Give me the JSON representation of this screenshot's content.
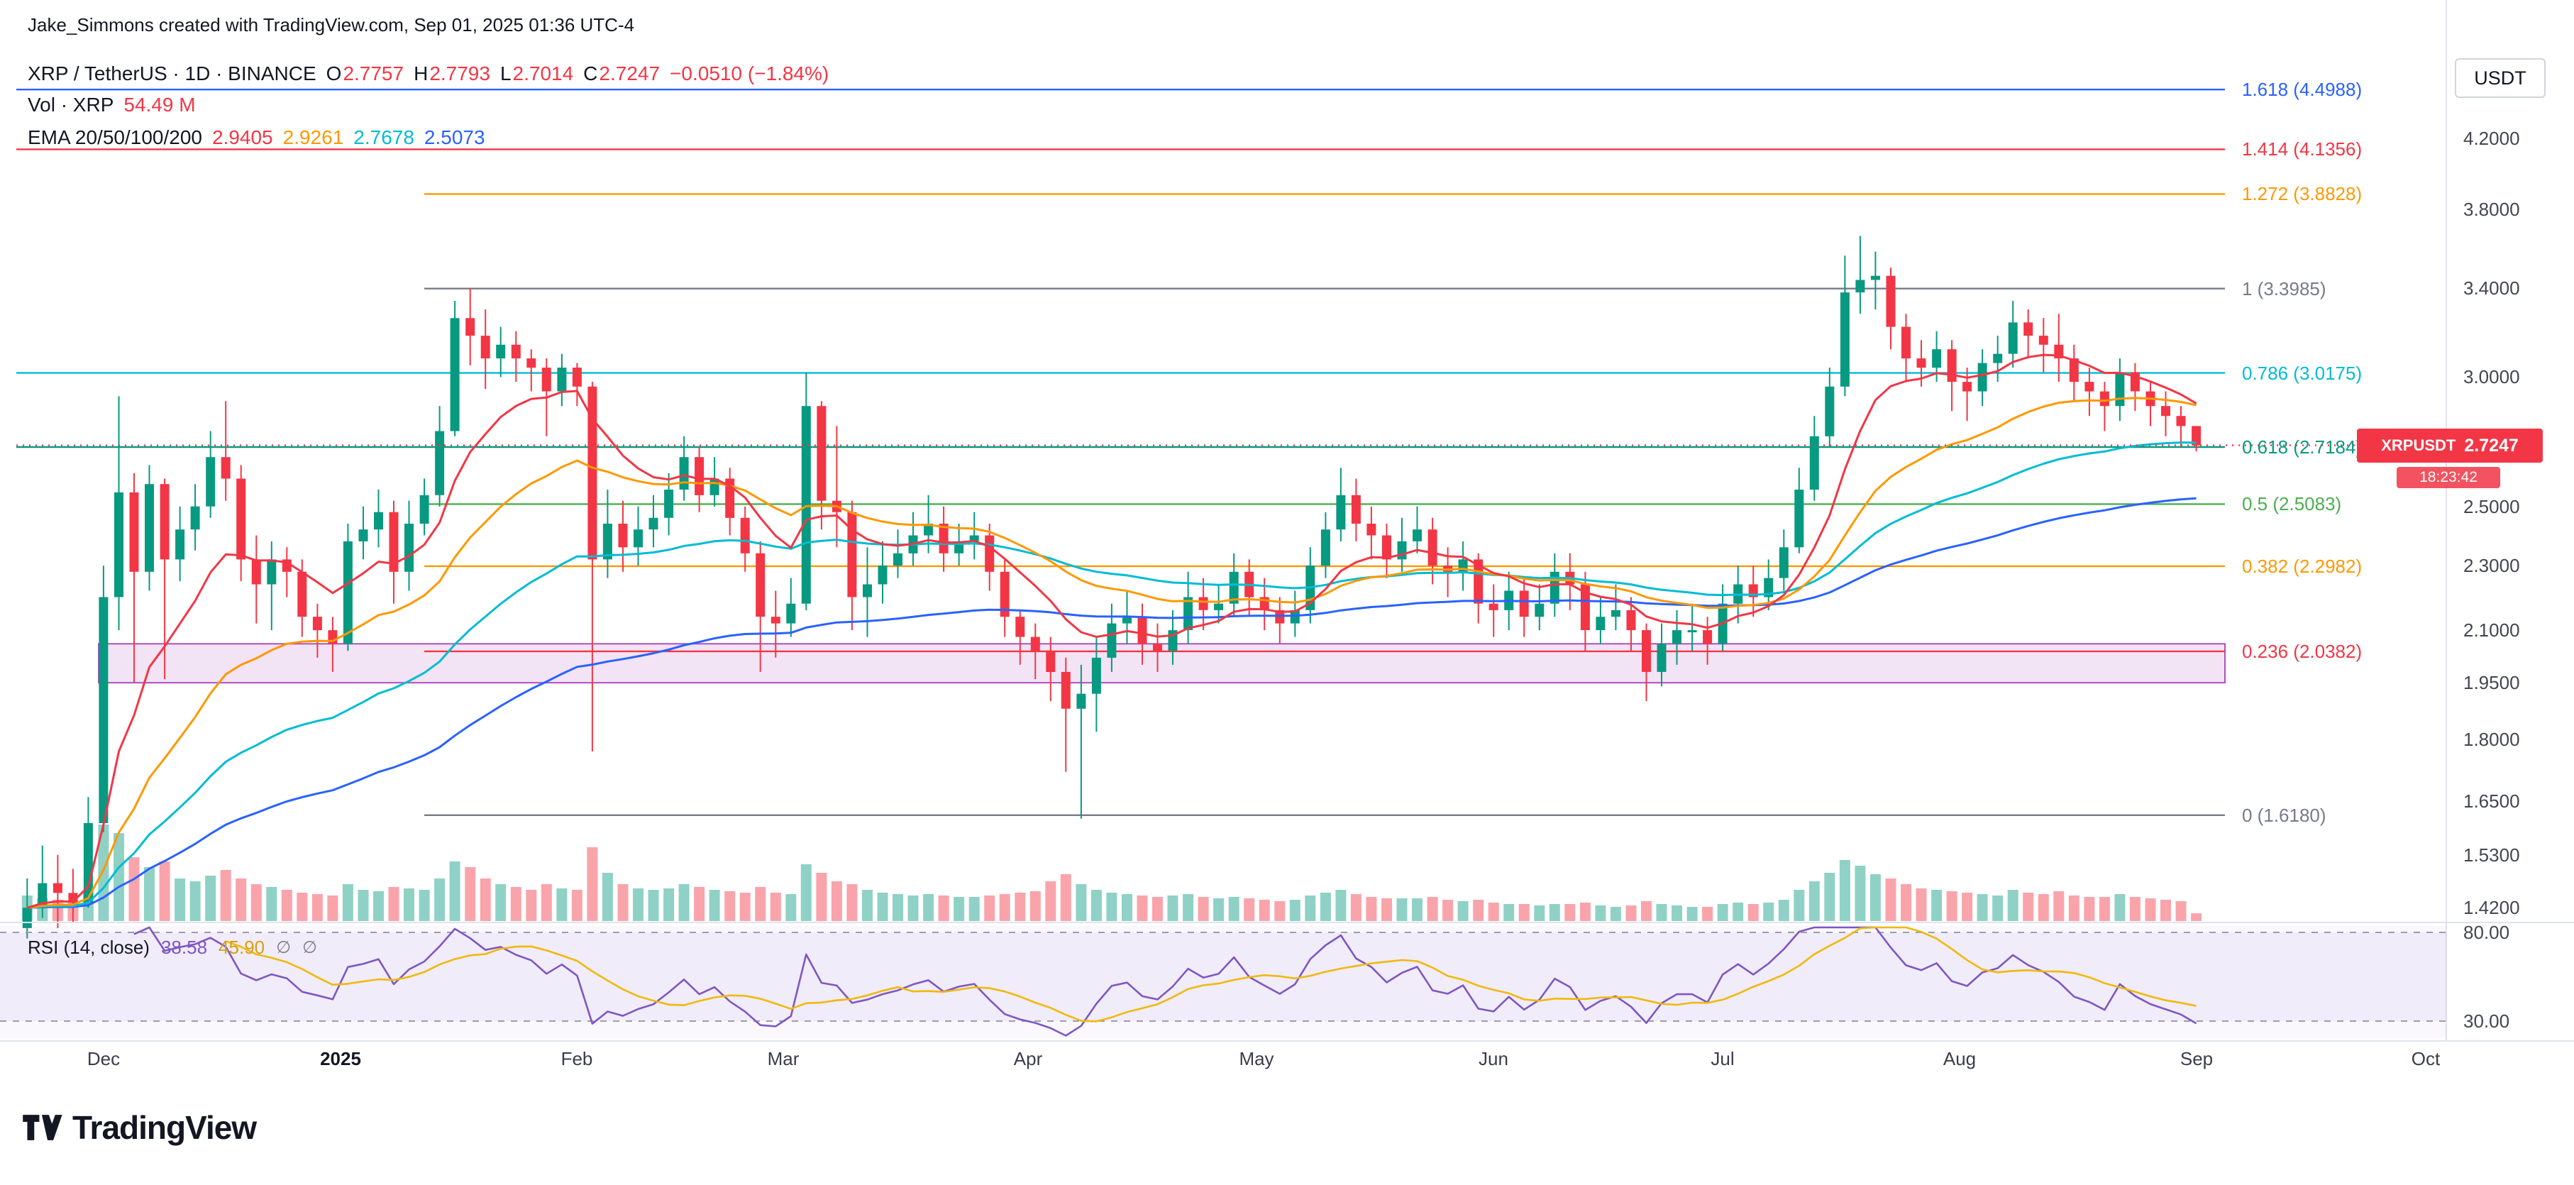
{
  "attribution": "Jake_Simmons created with TradingView.com, Sep 01, 2025 01:36 UTC-4",
  "legend": {
    "symbol": "XRP / TetherUS · 1D · BINANCE",
    "ohlc": {
      "o_label": "O",
      "o": "2.7757",
      "h_label": "H",
      "h": "2.7793",
      "l_label": "L",
      "l": "2.7014",
      "c_label": "C",
      "c": "2.7247",
      "change": "−0.0510 (−1.84%)"
    },
    "vol_label": "Vol · XRP",
    "vol_value": "54.49 M",
    "ema_label": "EMA 20/50/100/200"
  },
  "rsi_legend": {
    "title": "RSI",
    "params": "(14, close)",
    "value": "38.58",
    "ma_value": "45.90",
    "empty_icon": "∅",
    "value_color": "#7e57c2",
    "ma_color": "#d4a017"
  },
  "price_tag": {
    "symbol": "XRPUSDT",
    "price": "2.7247",
    "countdown": "18:23:42",
    "color": "#f23645"
  },
  "price_axis": {
    "currency": "USDT",
    "ticks": [
      {
        "label": "4.2000",
        "price": 4.2
      },
      {
        "label": "3.8000",
        "price": 3.8
      },
      {
        "label": "3.4000",
        "price": 3.4
      },
      {
        "label": "3.0000",
        "price": 3.0
      },
      {
        "label": "2.5000",
        "price": 2.5
      },
      {
        "label": "2.3000",
        "price": 2.3
      },
      {
        "label": "2.1000",
        "price": 2.1
      },
      {
        "label": "1.9500",
        "price": 1.95
      },
      {
        "label": "1.8000",
        "price": 1.8
      },
      {
        "label": "1.6500",
        "price": 1.65
      },
      {
        "label": "1.5300",
        "price": 1.53
      },
      {
        "label": "1.4200",
        "price": 1.42
      }
    ],
    "rsi_ticks": [
      {
        "label": "80.00",
        "value": 80
      },
      {
        "label": "30.00",
        "value": 30
      }
    ]
  },
  "time_axis": [
    {
      "label": "Dec",
      "bar": 5,
      "bold": false
    },
    {
      "label": "2025",
      "bar": 20.5,
      "bold": true
    },
    {
      "label": "Feb",
      "bar": 36,
      "bold": false
    },
    {
      "label": "Mar",
      "bar": 49.5,
      "bold": false
    },
    {
      "label": "Apr",
      "bar": 65.5,
      "bold": false
    },
    {
      "label": "May",
      "bar": 80.5,
      "bold": false
    },
    {
      "label": "Jun",
      "bar": 96,
      "bold": false
    },
    {
      "label": "Jul",
      "bar": 111,
      "bold": false
    },
    {
      "label": "Aug",
      "bar": 126.5,
      "bold": false
    },
    {
      "label": "Sep",
      "bar": 142,
      "bold": false
    },
    {
      "label": "Oct",
      "bar": 157,
      "bold": false
    }
  ],
  "logo": {
    "text": "TradingView"
  },
  "chart_data": {
    "type": "candlestick",
    "symbol": "XRP/USDT",
    "exchange": "BINANCE",
    "timeframe": "1D",
    "scale": "log",
    "x_start_date": "2024-11-21",
    "bar_interval_days": 2,
    "first_open": 1.38,
    "last_bar": {
      "open": 2.7757,
      "high": 2.7793,
      "low": 2.7014,
      "close": 2.7247,
      "change": -0.051,
      "change_pct": -1.84
    },
    "colors": {
      "up": "#089981",
      "down": "#f23645",
      "vol_up": "#089981",
      "vol_down": "#f23645"
    },
    "candles": [
      [
        1.42,
        1.48,
        1.36
      ],
      [
        1.47,
        1.55,
        1.4
      ],
      [
        1.45,
        1.53,
        1.38
      ],
      [
        1.43,
        1.5,
        1.39
      ],
      [
        1.6,
        1.66,
        1.42
      ],
      [
        2.2,
        2.3,
        1.58
      ],
      [
        2.55,
        2.92,
        2.1
      ],
      [
        2.28,
        2.62,
        1.95
      ],
      [
        2.58,
        2.65,
        2.22
      ],
      [
        2.32,
        2.6,
        1.96
      ],
      [
        2.42,
        2.5,
        2.25
      ],
      [
        2.5,
        2.58,
        2.35
      ],
      [
        2.68,
        2.78,
        2.46
      ],
      [
        2.6,
        2.9,
        2.52
      ],
      [
        2.32,
        2.65,
        2.25
      ],
      [
        2.24,
        2.4,
        2.12
      ],
      [
        2.32,
        2.38,
        2.1
      ],
      [
        2.28,
        2.36,
        2.2
      ],
      [
        2.14,
        2.32,
        2.08
      ],
      [
        2.1,
        2.18,
        2.02
      ],
      [
        2.06,
        2.14,
        1.98
      ],
      [
        2.38,
        2.44,
        2.04
      ],
      [
        2.42,
        2.5,
        2.32
      ],
      [
        2.48,
        2.56,
        2.36
      ],
      [
        2.28,
        2.52,
        2.18
      ],
      [
        2.44,
        2.52,
        2.22
      ],
      [
        2.54,
        2.6,
        2.4
      ],
      [
        2.78,
        2.88,
        2.5
      ],
      [
        3.26,
        3.34,
        2.76
      ],
      [
        3.18,
        3.4,
        3.05
      ],
      [
        3.08,
        3.3,
        2.95
      ],
      [
        3.14,
        3.22,
        3.0
      ],
      [
        3.08,
        3.2,
        2.98
      ],
      [
        3.04,
        3.12,
        2.94
      ],
      [
        2.94,
        3.08,
        2.76
      ],
      [
        3.04,
        3.1,
        2.88
      ],
      [
        2.96,
        3.06,
        2.88
      ],
      [
        2.32,
        2.98,
        1.77
      ],
      [
        2.44,
        2.56,
        2.26
      ],
      [
        2.36,
        2.52,
        2.28
      ],
      [
        2.42,
        2.5,
        2.3
      ],
      [
        2.46,
        2.54,
        2.36
      ],
      [
        2.56,
        2.62,
        2.4
      ],
      [
        2.68,
        2.76,
        2.52
      ],
      [
        2.54,
        2.72,
        2.48
      ],
      [
        2.6,
        2.68,
        2.5
      ],
      [
        2.46,
        2.64,
        2.4
      ],
      [
        2.34,
        2.5,
        2.28
      ],
      [
        2.14,
        2.38,
        1.98
      ],
      [
        2.12,
        2.22,
        2.02
      ],
      [
        2.18,
        2.26,
        2.08
      ],
      [
        2.88,
        3.02,
        2.16
      ],
      [
        2.52,
        2.9,
        2.42
      ],
      [
        2.48,
        2.8,
        2.36
      ],
      [
        2.2,
        2.52,
        2.1
      ],
      [
        2.24,
        2.36,
        2.08
      ],
      [
        2.3,
        2.38,
        2.18
      ],
      [
        2.34,
        2.42,
        2.26
      ],
      [
        2.4,
        2.48,
        2.3
      ],
      [
        2.44,
        2.54,
        2.34
      ],
      [
        2.34,
        2.5,
        2.28
      ],
      [
        2.38,
        2.44,
        2.3
      ],
      [
        2.4,
        2.48,
        2.32
      ],
      [
        2.28,
        2.44,
        2.22
      ],
      [
        2.14,
        2.32,
        2.08
      ],
      [
        2.08,
        2.16,
        2.0
      ],
      [
        2.04,
        2.12,
        1.96
      ],
      [
        1.98,
        2.08,
        1.9
      ],
      [
        1.88,
        2.02,
        1.72
      ],
      [
        1.92,
        2.0,
        1.61
      ],
      [
        2.02,
        2.08,
        1.82
      ],
      [
        2.12,
        2.18,
        1.98
      ],
      [
        2.14,
        2.22,
        2.06
      ],
      [
        2.06,
        2.18,
        2.0
      ],
      [
        2.04,
        2.12,
        1.98
      ],
      [
        2.1,
        2.16,
        2.0
      ],
      [
        2.2,
        2.28,
        2.06
      ],
      [
        2.16,
        2.26,
        2.1
      ],
      [
        2.18,
        2.24,
        2.12
      ],
      [
        2.28,
        2.34,
        2.14
      ],
      [
        2.2,
        2.32,
        2.14
      ],
      [
        2.16,
        2.26,
        2.1
      ],
      [
        2.12,
        2.2,
        2.06
      ],
      [
        2.16,
        2.22,
        2.08
      ],
      [
        2.3,
        2.36,
        2.12
      ],
      [
        2.42,
        2.48,
        2.26
      ],
      [
        2.54,
        2.64,
        2.38
      ],
      [
        2.44,
        2.6,
        2.38
      ],
      [
        2.4,
        2.5,
        2.32
      ],
      [
        2.32,
        2.44,
        2.26
      ],
      [
        2.38,
        2.46,
        2.28
      ],
      [
        2.42,
        2.5,
        2.34
      ],
      [
        2.3,
        2.46,
        2.24
      ],
      [
        2.28,
        2.36,
        2.2
      ],
      [
        2.32,
        2.38,
        2.22
      ],
      [
        2.18,
        2.34,
        2.12
      ],
      [
        2.16,
        2.24,
        2.08
      ],
      [
        2.22,
        2.28,
        2.1
      ],
      [
        2.14,
        2.26,
        2.08
      ],
      [
        2.18,
        2.24,
        2.1
      ],
      [
        2.28,
        2.34,
        2.14
      ],
      [
        2.24,
        2.34,
        2.16
      ],
      [
        2.1,
        2.28,
        2.04
      ],
      [
        2.14,
        2.2,
        2.06
      ],
      [
        2.16,
        2.24,
        2.1
      ],
      [
        2.1,
        2.2,
        2.04
      ],
      [
        1.98,
        2.12,
        1.9
      ],
      [
        2.06,
        2.12,
        1.94
      ],
      [
        2.1,
        2.16,
        2.0
      ],
      [
        2.1,
        2.18,
        2.04
      ],
      [
        2.06,
        2.14,
        2.0
      ],
      [
        2.18,
        2.24,
        2.04
      ],
      [
        2.24,
        2.3,
        2.12
      ],
      [
        2.2,
        2.3,
        2.14
      ],
      [
        2.26,
        2.32,
        2.16
      ],
      [
        2.36,
        2.42,
        2.22
      ],
      [
        2.56,
        2.64,
        2.34
      ],
      [
        2.76,
        2.84,
        2.52
      ],
      [
        2.96,
        3.04,
        2.72
      ],
      [
        3.38,
        3.56,
        2.92
      ],
      [
        3.44,
        3.66,
        3.28
      ],
      [
        3.46,
        3.58,
        3.3
      ],
      [
        3.22,
        3.5,
        3.12
      ],
      [
        3.08,
        3.28,
        2.98
      ],
      [
        3.04,
        3.16,
        2.96
      ],
      [
        3.12,
        3.2,
        2.98
      ],
      [
        2.98,
        3.16,
        2.86
      ],
      [
        2.94,
        3.04,
        2.82
      ],
      [
        3.06,
        3.12,
        2.88
      ],
      [
        3.1,
        3.18,
        2.98
      ],
      [
        3.24,
        3.34,
        3.04
      ],
      [
        3.18,
        3.3,
        3.08
      ],
      [
        3.14,
        3.26,
        3.02
      ],
      [
        3.08,
        3.28,
        2.98
      ],
      [
        2.98,
        3.14,
        2.9
      ],
      [
        2.94,
        3.04,
        2.84
      ],
      [
        2.88,
        2.98,
        2.78
      ],
      [
        3.02,
        3.08,
        2.82
      ],
      [
        2.94,
        3.06,
        2.86
      ],
      [
        2.88,
        2.98,
        2.8
      ],
      [
        2.84,
        2.94,
        2.76
      ],
      [
        2.8,
        2.88,
        2.72
      ],
      [
        2.7247,
        2.7793,
        2.7014
      ]
    ],
    "volumes_m": [
      180,
      160,
      150,
      140,
      220,
      680,
      620,
      450,
      380,
      420,
      300,
      280,
      320,
      360,
      300,
      260,
      240,
      220,
      200,
      190,
      180,
      260,
      220,
      210,
      240,
      230,
      220,
      300,
      420,
      380,
      300,
      260,
      240,
      220,
      260,
      230,
      220,
      520,
      340,
      260,
      230,
      220,
      230,
      260,
      240,
      220,
      210,
      200,
      240,
      200,
      190,
      400,
      340,
      280,
      260,
      220,
      200,
      190,
      180,
      190,
      180,
      170,
      170,
      180,
      190,
      200,
      210,
      280,
      330,
      260,
      220,
      200,
      190,
      180,
      170,
      180,
      190,
      170,
      160,
      170,
      160,
      150,
      140,
      150,
      180,
      200,
      220,
      190,
      170,
      160,
      160,
      160,
      170,
      150,
      140,
      150,
      130,
      120,
      120,
      110,
      120,
      120,
      130,
      110,
      100,
      110,
      140,
      120,
      110,
      100,
      100,
      120,
      130,
      120,
      130,
      150,
      220,
      280,
      340,
      430,
      390,
      330,
      300,
      260,
      230,
      220,
      210,
      200,
      190,
      180,
      220,
      200,
      190,
      210,
      180,
      170,
      170,
      190,
      170,
      160,
      150,
      140,
      54.49
    ],
    "emas": [
      {
        "label": "EMA 20",
        "period_bars": 10,
        "color": "#f23645",
        "last": 2.9405
      },
      {
        "label": "EMA 50",
        "period_bars": 25,
        "color": "#ff9800",
        "last": 2.9261
      },
      {
        "label": "EMA 100",
        "period_bars": 50,
        "color": "#00bcd4",
        "last": 2.7678
      },
      {
        "label": "EMA 200",
        "period_bars": 100,
        "color": "#2962ff",
        "last": 2.5073
      }
    ],
    "ema_legend_values": [
      {
        "text": "2.9405",
        "color": "#f23645"
      },
      {
        "text": "2.9261",
        "color": "#ff9800"
      },
      {
        "text": "2.7678",
        "color": "#00bcd4"
      },
      {
        "text": "2.5073",
        "color": "#2962ff"
      }
    ],
    "rsi": {
      "period_bars": 7,
      "ma_window": 7,
      "color": "#7e57c2",
      "ma_color": "#f0b90b",
      "bands": [
        80,
        30
      ],
      "last": 38.58,
      "ma_last": 45.9
    },
    "fib_levels": [
      {
        "label": "1.618 (4.4988)",
        "price": 4.4988,
        "color": "#2962ff",
        "full_width": true
      },
      {
        "label": "1.414 (4.1356)",
        "price": 4.1356,
        "color": "#f23645",
        "full_width": true
      },
      {
        "label": "1.272 (3.8828)",
        "price": 3.8828,
        "color": "#ff9800",
        "full_width": false
      },
      {
        "label": "1 (3.3985)",
        "price": 3.3985,
        "color": "#787b86",
        "full_width": false
      },
      {
        "label": "0.786 (3.0175)",
        "price": 3.0175,
        "color": "#00bcd4",
        "full_width": true
      },
      {
        "label": "0.618 (2.7184)",
        "price": 2.7184,
        "color": "#089981",
        "full_width": true
      },
      {
        "label": "0.5 (2.5083)",
        "price": 2.5083,
        "color": "#4caf50",
        "full_width": false
      },
      {
        "label": "0.382 (2.2982)",
        "price": 2.2982,
        "color": "#ff9800",
        "full_width": false
      },
      {
        "label": "0.236 (2.0382)",
        "price": 2.0382,
        "color": "#f23645",
        "full_width": false
      },
      {
        "label": "0 (1.6180)",
        "price": 1.618,
        "color": "#787b86",
        "full_width": false
      }
    ],
    "support_zone": {
      "top": 2.06,
      "bottom": 1.95,
      "color": "#9c27b0"
    },
    "price_line": {
      "price": 2.7247,
      "color": "#f23645"
    }
  }
}
